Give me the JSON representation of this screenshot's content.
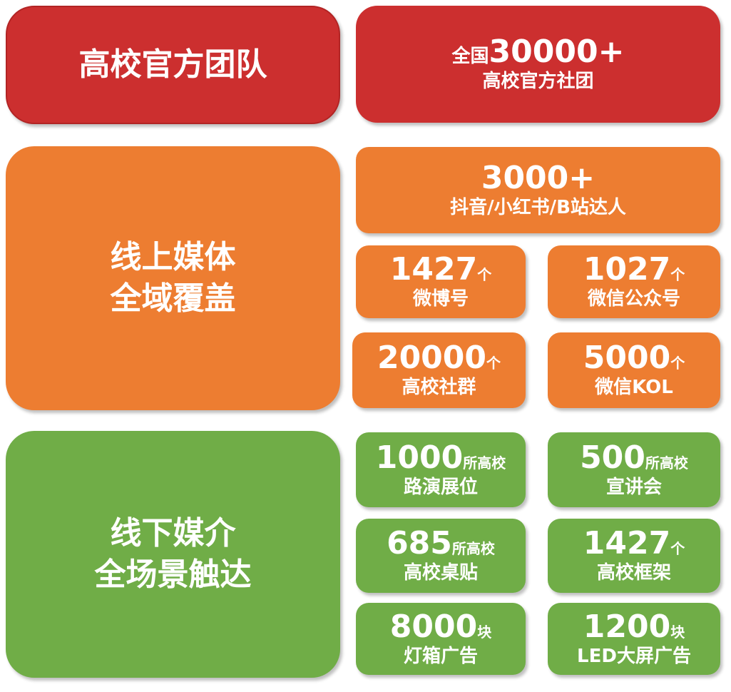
{
  "colors": {
    "red": "#CC2F2F",
    "orange": "#ED7D31",
    "green": "#70AD47"
  },
  "team": {
    "title": "高校官方团队",
    "prefix": "全国",
    "number": "30000+",
    "label": "高校官方社团"
  },
  "online": {
    "title_line1": "线上媒体",
    "title_line2": "全域覆盖",
    "headline": {
      "number": "3000+",
      "label": "抖音/小红书/B站达人"
    },
    "items": [
      {
        "number": "1427",
        "unit": "个",
        "label": "微博号"
      },
      {
        "number": "1027",
        "unit": "个",
        "label": "微信公众号"
      },
      {
        "number": "20000",
        "unit": "个",
        "label": "高校社群"
      },
      {
        "number": "5000",
        "unit": "个",
        "label": "微信KOL"
      }
    ]
  },
  "offline": {
    "title_line1": "线下媒介",
    "title_line2": "全场景触达",
    "items": [
      {
        "number": "1000",
        "unit": "所高校",
        "label": "路演展位"
      },
      {
        "number": "500",
        "unit": "所高校",
        "label": "宣讲会"
      },
      {
        "number": "685",
        "unit": "所高校",
        "label": "高校桌贴"
      },
      {
        "number": "1427",
        "unit": "个",
        "label": "高校框架"
      },
      {
        "number": "8000",
        "unit": "块",
        "label": "灯箱广告"
      },
      {
        "number": "1200",
        "unit": "块",
        "label": "LED大屏广告"
      }
    ]
  }
}
